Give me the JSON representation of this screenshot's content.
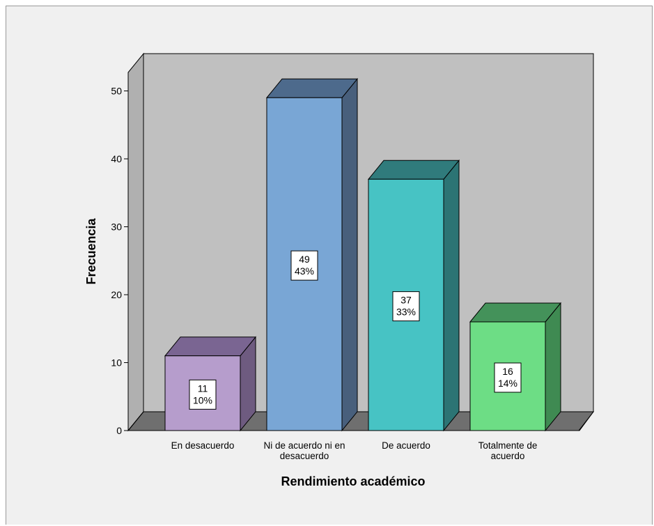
{
  "chart_data": {
    "type": "bar",
    "title": "",
    "xlabel": "Rendimiento académico",
    "ylabel": "Frecuencia",
    "ylim": [
      0,
      55
    ],
    "yticks": [
      0,
      10,
      20,
      30,
      40,
      50
    ],
    "grid": false,
    "style": "3d",
    "categories": [
      [
        "En desacuerdo"
      ],
      [
        "Ni de acuerdo ni en",
        "desacuerdo"
      ],
      [
        "De acuerdo"
      ],
      [
        "Totalmente de",
        "acuerdo"
      ]
    ],
    "values": [
      11,
      49,
      37,
      16
    ],
    "percent_labels": [
      "10%",
      "43%",
      "33%",
      "14%"
    ],
    "colors": [
      {
        "front": "#b69dcc",
        "side": "#6e5b80",
        "top": "#7a6592"
      },
      {
        "front": "#79a6d5",
        "side": "#485f7c",
        "top": "#4d6a8c"
      },
      {
        "front": "#47c3c4",
        "side": "#2c7474",
        "top": "#307b7c"
      },
      {
        "front": "#6ddd85",
        "side": "#3f8a52",
        "top": "#44925a"
      }
    ],
    "wall_color": "#c0c0c0",
    "floor_color": "#6f6f6f"
  }
}
